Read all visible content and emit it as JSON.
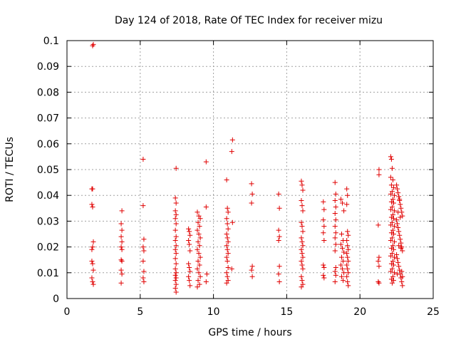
{
  "chart_data": {
    "type": "scatter",
    "title": "Day 124 of 2018, Rate Of TEC Index for receiver mizu",
    "xlabel": "GPS time / hours",
    "ylabel": "ROTI / TECUs",
    "xlim": [
      0,
      25
    ],
    "ylim": [
      0,
      0.1
    ],
    "xticks": [
      0,
      5,
      10,
      15,
      20,
      25
    ],
    "xtick_labels": [
      "0",
      "5",
      "10",
      "15",
      "20",
      "25"
    ],
    "yticks": [
      0,
      0.01,
      0.02,
      0.03,
      0.04,
      0.05,
      0.06,
      0.07,
      0.08,
      0.09,
      0.1
    ],
    "ytick_labels": [
      "0",
      "0.01",
      "0.02",
      "0.03",
      "0.04",
      "0.05",
      "0.06",
      "0.07",
      "0.08",
      "0.09",
      "0.1"
    ],
    "grid": true,
    "marker": "+",
    "color": "#e00000",
    "series": [
      {
        "name": "ROTI",
        "points": [
          [
            1.75,
            0.098
          ],
          [
            1.8,
            0.0985
          ],
          [
            1.7,
            0.0425
          ],
          [
            1.75,
            0.0425
          ],
          [
            1.7,
            0.0365
          ],
          [
            1.75,
            0.0355
          ],
          [
            1.8,
            0.022
          ],
          [
            1.75,
            0.02
          ],
          [
            1.7,
            0.019
          ],
          [
            1.7,
            0.0145
          ],
          [
            1.75,
            0.0135
          ],
          [
            1.8,
            0.011
          ],
          [
            1.7,
            0.008
          ],
          [
            1.75,
            0.0065
          ],
          [
            1.8,
            0.0055
          ],
          [
            3.75,
            0.034
          ],
          [
            3.7,
            0.029
          ],
          [
            3.75,
            0.0265
          ],
          [
            3.7,
            0.024
          ],
          [
            3.75,
            0.022
          ],
          [
            3.7,
            0.02
          ],
          [
            3.75,
            0.019
          ],
          [
            3.7,
            0.015
          ],
          [
            3.75,
            0.0145
          ],
          [
            3.7,
            0.011
          ],
          [
            3.75,
            0.0095
          ],
          [
            3.7,
            0.006
          ],
          [
            5.2,
            0.054
          ],
          [
            5.2,
            0.036
          ],
          [
            5.25,
            0.023
          ],
          [
            5.2,
            0.02
          ],
          [
            5.25,
            0.0185
          ],
          [
            5.2,
            0.0145
          ],
          [
            5.25,
            0.0105
          ],
          [
            5.2,
            0.008
          ],
          [
            5.25,
            0.0065
          ],
          [
            7.45,
            0.0505
          ],
          [
            7.4,
            0.039
          ],
          [
            7.45,
            0.037
          ],
          [
            7.4,
            0.034
          ],
          [
            7.45,
            0.0325
          ],
          [
            7.4,
            0.031
          ],
          [
            7.45,
            0.029
          ],
          [
            7.4,
            0.0265
          ],
          [
            7.45,
            0.024
          ],
          [
            7.4,
            0.0225
          ],
          [
            7.45,
            0.0205
          ],
          [
            7.4,
            0.019
          ],
          [
            7.45,
            0.0175
          ],
          [
            7.4,
            0.0155
          ],
          [
            7.45,
            0.0135
          ],
          [
            7.4,
            0.0115
          ],
          [
            7.45,
            0.01
          ],
          [
            7.4,
            0.009
          ],
          [
            7.45,
            0.008
          ],
          [
            7.4,
            0.007
          ],
          [
            7.45,
            0.0055
          ],
          [
            7.4,
            0.004
          ],
          [
            7.45,
            0.0025
          ],
          [
            8.3,
            0.027
          ],
          [
            8.35,
            0.026
          ],
          [
            8.4,
            0.0245
          ],
          [
            8.3,
            0.0225
          ],
          [
            8.35,
            0.021
          ],
          [
            8.4,
            0.0185
          ],
          [
            8.3,
            0.0135
          ],
          [
            8.35,
            0.012
          ],
          [
            8.4,
            0.0105
          ],
          [
            8.3,
            0.0085
          ],
          [
            8.35,
            0.007
          ],
          [
            8.4,
            0.005
          ],
          [
            8.9,
            0.0335
          ],
          [
            9.0,
            0.032
          ],
          [
            9.1,
            0.031
          ],
          [
            8.95,
            0.0295
          ],
          [
            9.05,
            0.028
          ],
          [
            8.9,
            0.0265
          ],
          [
            9.0,
            0.025
          ],
          [
            9.1,
            0.0235
          ],
          [
            8.95,
            0.022
          ],
          [
            9.05,
            0.0205
          ],
          [
            8.9,
            0.019
          ],
          [
            9.0,
            0.0175
          ],
          [
            9.1,
            0.016
          ],
          [
            8.95,
            0.0145
          ],
          [
            9.05,
            0.013
          ],
          [
            8.9,
            0.0115
          ],
          [
            9.0,
            0.01
          ],
          [
            9.1,
            0.0085
          ],
          [
            8.95,
            0.007
          ],
          [
            9.05,
            0.0055
          ],
          [
            8.9,
            0.0045
          ],
          [
            9.5,
            0.053
          ],
          [
            9.5,
            0.0355
          ],
          [
            9.55,
            0.0095
          ],
          [
            9.5,
            0.0065
          ],
          [
            10.9,
            0.046
          ],
          [
            10.95,
            0.035
          ],
          [
            11.0,
            0.0335
          ],
          [
            10.9,
            0.031
          ],
          [
            10.95,
            0.029
          ],
          [
            11.0,
            0.027
          ],
          [
            10.9,
            0.025
          ],
          [
            10.95,
            0.0235
          ],
          [
            11.0,
            0.022
          ],
          [
            10.9,
            0.0205
          ],
          [
            10.95,
            0.019
          ],
          [
            11.0,
            0.0175
          ],
          [
            10.9,
            0.016
          ],
          [
            10.95,
            0.0145
          ],
          [
            11.0,
            0.012
          ],
          [
            10.9,
            0.01
          ],
          [
            10.95,
            0.0085
          ],
          [
            11.0,
            0.007
          ],
          [
            10.9,
            0.006
          ],
          [
            11.3,
            0.0615
          ],
          [
            11.25,
            0.057
          ],
          [
            11.3,
            0.0295
          ],
          [
            11.25,
            0.0115
          ],
          [
            12.6,
            0.0445
          ],
          [
            12.65,
            0.0405
          ],
          [
            12.6,
            0.037
          ],
          [
            12.65,
            0.0125
          ],
          [
            12.6,
            0.011
          ],
          [
            12.65,
            0.0085
          ],
          [
            14.45,
            0.0405
          ],
          [
            14.5,
            0.035
          ],
          [
            14.45,
            0.0265
          ],
          [
            14.5,
            0.024
          ],
          [
            14.45,
            0.0225
          ],
          [
            14.5,
            0.0125
          ],
          [
            14.45,
            0.0095
          ],
          [
            14.5,
            0.0065
          ],
          [
            16.0,
            0.0455
          ],
          [
            16.05,
            0.044
          ],
          [
            16.1,
            0.042
          ],
          [
            16.0,
            0.038
          ],
          [
            16.05,
            0.036
          ],
          [
            16.1,
            0.034
          ],
          [
            16.0,
            0.0295
          ],
          [
            16.05,
            0.028
          ],
          [
            16.1,
            0.026
          ],
          [
            16.0,
            0.0235
          ],
          [
            16.05,
            0.022
          ],
          [
            16.1,
            0.0205
          ],
          [
            16.0,
            0.019
          ],
          [
            16.05,
            0.0175
          ],
          [
            16.1,
            0.016
          ],
          [
            16.0,
            0.0145
          ],
          [
            16.05,
            0.013
          ],
          [
            16.1,
            0.0115
          ],
          [
            16.0,
            0.0085
          ],
          [
            16.05,
            0.007
          ],
          [
            16.1,
            0.0055
          ],
          [
            16.0,
            0.0045
          ],
          [
            17.5,
            0.0375
          ],
          [
            17.55,
            0.0345
          ],
          [
            17.5,
            0.0305
          ],
          [
            17.55,
            0.028
          ],
          [
            17.5,
            0.0255
          ],
          [
            17.55,
            0.0225
          ],
          [
            17.5,
            0.013
          ],
          [
            17.55,
            0.012
          ],
          [
            17.5,
            0.009
          ],
          [
            17.55,
            0.008
          ],
          [
            18.3,
            0.045
          ],
          [
            18.35,
            0.0405
          ],
          [
            18.3,
            0.038
          ],
          [
            18.35,
            0.0355
          ],
          [
            18.3,
            0.033
          ],
          [
            18.35,
            0.0305
          ],
          [
            18.3,
            0.028
          ],
          [
            18.35,
            0.0255
          ],
          [
            18.3,
            0.0235
          ],
          [
            18.35,
            0.021
          ],
          [
            18.3,
            0.0185
          ],
          [
            18.35,
            0.012
          ],
          [
            18.3,
            0.0105
          ],
          [
            18.35,
            0.009
          ],
          [
            18.3,
            0.0065
          ],
          [
            18.7,
            0.0385
          ],
          [
            18.8,
            0.037
          ],
          [
            18.9,
            0.034
          ],
          [
            18.75,
            0.025
          ],
          [
            18.85,
            0.0225
          ],
          [
            18.7,
            0.021
          ],
          [
            18.8,
            0.0195
          ],
          [
            18.9,
            0.018
          ],
          [
            18.75,
            0.016
          ],
          [
            18.85,
            0.0145
          ],
          [
            18.7,
            0.013
          ],
          [
            18.8,
            0.0115
          ],
          [
            18.9,
            0.01
          ],
          [
            18.75,
            0.0085
          ],
          [
            18.85,
            0.007
          ],
          [
            19.1,
            0.0425
          ],
          [
            19.15,
            0.04
          ],
          [
            19.1,
            0.0365
          ],
          [
            19.15,
            0.026
          ],
          [
            19.2,
            0.0245
          ],
          [
            19.1,
            0.0225
          ],
          [
            19.15,
            0.0205
          ],
          [
            19.2,
            0.019
          ],
          [
            19.1,
            0.0175
          ],
          [
            19.15,
            0.016
          ],
          [
            19.2,
            0.0145
          ],
          [
            19.1,
            0.013
          ],
          [
            19.15,
            0.0115
          ],
          [
            19.2,
            0.01
          ],
          [
            19.1,
            0.0085
          ],
          [
            19.15,
            0.0065
          ],
          [
            19.2,
            0.005
          ],
          [
            21.3,
            0.05
          ],
          [
            21.3,
            0.048
          ],
          [
            21.25,
            0.0285
          ],
          [
            21.3,
            0.016
          ],
          [
            21.25,
            0.0145
          ],
          [
            21.3,
            0.0125
          ],
          [
            21.25,
            0.0065
          ],
          [
            21.3,
            0.006
          ],
          [
            22.1,
            0.055
          ],
          [
            22.15,
            0.054
          ],
          [
            22.2,
            0.0505
          ],
          [
            22.1,
            0.047
          ],
          [
            22.25,
            0.046
          ],
          [
            22.15,
            0.044
          ],
          [
            22.3,
            0.043
          ],
          [
            22.2,
            0.0415
          ],
          [
            22.1,
            0.0405
          ],
          [
            22.35,
            0.04
          ],
          [
            22.25,
            0.0385
          ],
          [
            22.15,
            0.0375
          ],
          [
            22.3,
            0.037
          ],
          [
            22.2,
            0.0355
          ],
          [
            22.1,
            0.0345
          ],
          [
            22.35,
            0.034
          ],
          [
            22.25,
            0.0325
          ],
          [
            22.15,
            0.0315
          ],
          [
            22.3,
            0.031
          ],
          [
            22.2,
            0.0295
          ],
          [
            22.1,
            0.0285
          ],
          [
            22.35,
            0.028
          ],
          [
            22.25,
            0.0265
          ],
          [
            22.15,
            0.0255
          ],
          [
            22.3,
            0.025
          ],
          [
            22.2,
            0.0235
          ],
          [
            22.1,
            0.0225
          ],
          [
            22.35,
            0.022
          ],
          [
            22.25,
            0.0205
          ],
          [
            22.15,
            0.0195
          ],
          [
            22.3,
            0.019
          ],
          [
            22.2,
            0.0175
          ],
          [
            22.1,
            0.0165
          ],
          [
            22.35,
            0.016
          ],
          [
            22.25,
            0.0145
          ],
          [
            22.15,
            0.0135
          ],
          [
            22.3,
            0.013
          ],
          [
            22.2,
            0.0115
          ],
          [
            22.1,
            0.0105
          ],
          [
            22.35,
            0.01
          ],
          [
            22.25,
            0.0085
          ],
          [
            22.15,
            0.0075
          ],
          [
            22.3,
            0.007
          ],
          [
            22.2,
            0.006
          ],
          [
            22.5,
            0.044
          ],
          [
            22.55,
            0.0425
          ],
          [
            22.6,
            0.041
          ],
          [
            22.65,
            0.0395
          ],
          [
            22.7,
            0.038
          ],
          [
            22.75,
            0.0365
          ],
          [
            22.8,
            0.035
          ],
          [
            22.85,
            0.0335
          ],
          [
            22.9,
            0.032
          ],
          [
            22.5,
            0.0305
          ],
          [
            22.55,
            0.029
          ],
          [
            22.6,
            0.0275
          ],
          [
            22.65,
            0.026
          ],
          [
            22.7,
            0.0245
          ],
          [
            22.75,
            0.023
          ],
          [
            22.8,
            0.0215
          ],
          [
            22.85,
            0.02
          ],
          [
            22.9,
            0.0185
          ],
          [
            22.5,
            0.017
          ],
          [
            22.55,
            0.0155
          ],
          [
            22.6,
            0.014
          ],
          [
            22.65,
            0.0125
          ],
          [
            22.7,
            0.011
          ],
          [
            22.75,
            0.0095
          ],
          [
            22.8,
            0.008
          ],
          [
            22.85,
            0.0065
          ],
          [
            22.9,
            0.005
          ],
          [
            22.7,
            0.0385
          ],
          [
            22.75,
            0.0315
          ],
          [
            22.8,
            0.0195
          ],
          [
            22.85,
            0.0105
          ],
          [
            22.9,
            0.0085
          ],
          [
            22.6,
            0.0335
          ],
          [
            22.65,
            0.0205
          ],
          [
            22.55,
            0.0095
          ]
        ]
      }
    ]
  }
}
